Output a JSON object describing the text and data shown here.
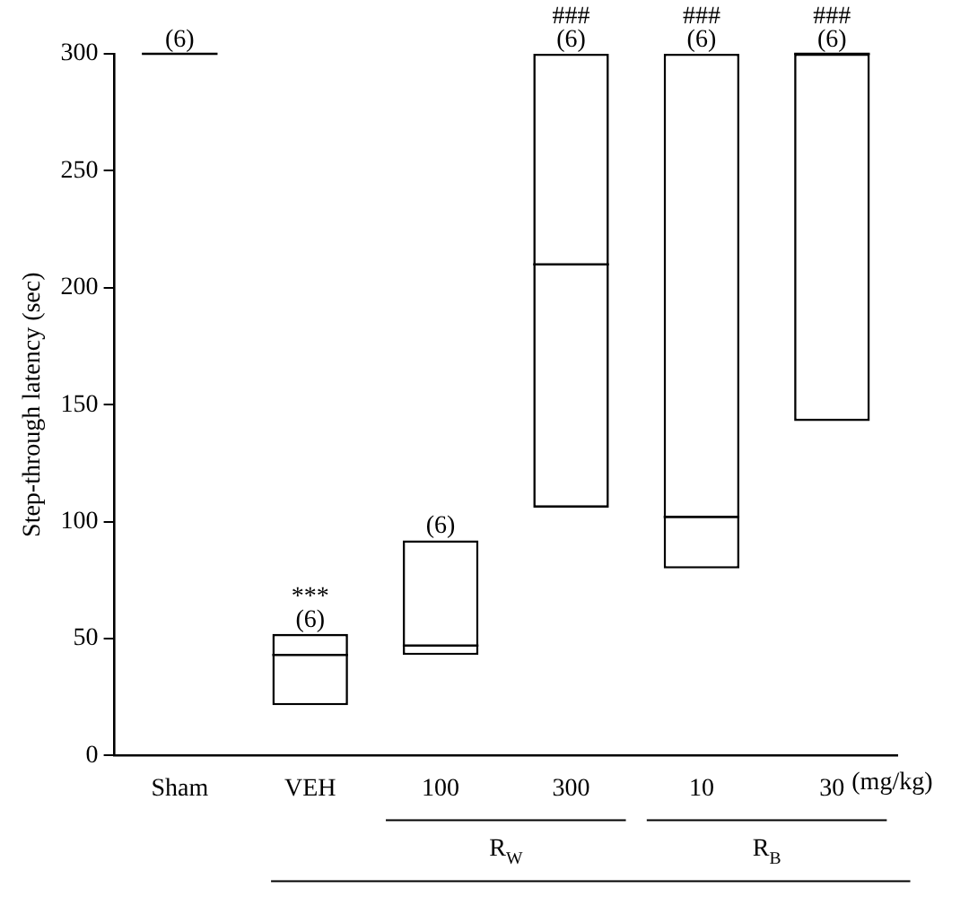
{
  "chart_data": {
    "type": "box",
    "ylabel": "Step-through latency (sec)",
    "categories": [
      "Sham",
      "VEH",
      "100",
      "300",
      "10",
      "30"
    ],
    "boxes": [
      {
        "low": 300,
        "q1": 300,
        "median": 300,
        "q3": 300,
        "high": 300
      },
      {
        "low": 21.5,
        "q1": 21.5,
        "median": 43,
        "q3": 52,
        "high": 52
      },
      {
        "low": 43,
        "q1": 43,
        "median": 47,
        "q3": 92,
        "high": 92
      },
      {
        "low": 106,
        "q1": 106,
        "median": 210,
        "q3": 300,
        "high": 300
      },
      {
        "low": 80,
        "q1": 80,
        "median": 102,
        "q3": 300,
        "high": 300
      },
      {
        "low": 143,
        "q1": 143,
        "median": 300,
        "q3": 300,
        "high": 300
      }
    ],
    "ylim": [
      0,
      300
    ],
    "yticks": [
      0,
      50,
      100,
      150,
      200,
      250,
      300
    ],
    "grid": false,
    "legend": false,
    "annotations": [
      {
        "text": "(6)",
        "x": "Sham",
        "y": 300
      },
      {
        "text": "(6)",
        "x": "VEH",
        "y": 52
      },
      {
        "text": "***",
        "x": "VEH",
        "y": 52
      },
      {
        "text": "(6)",
        "x": "100",
        "y": 92
      },
      {
        "text": "(6)",
        "x": "300",
        "y": 300
      },
      {
        "text": "###",
        "x": "300",
        "y": 300
      },
      {
        "text": "(6)",
        "x": "10",
        "y": 300
      },
      {
        "text": "###",
        "x": "10",
        "y": 300
      },
      {
        "text": "(6)",
        "x": "30",
        "y": 300
      },
      {
        "text": "###",
        "x": "30",
        "y": 300
      },
      "(mg/kg)",
      "R$_{W}$",
      "R$_{B}$"
    ]
  }
}
